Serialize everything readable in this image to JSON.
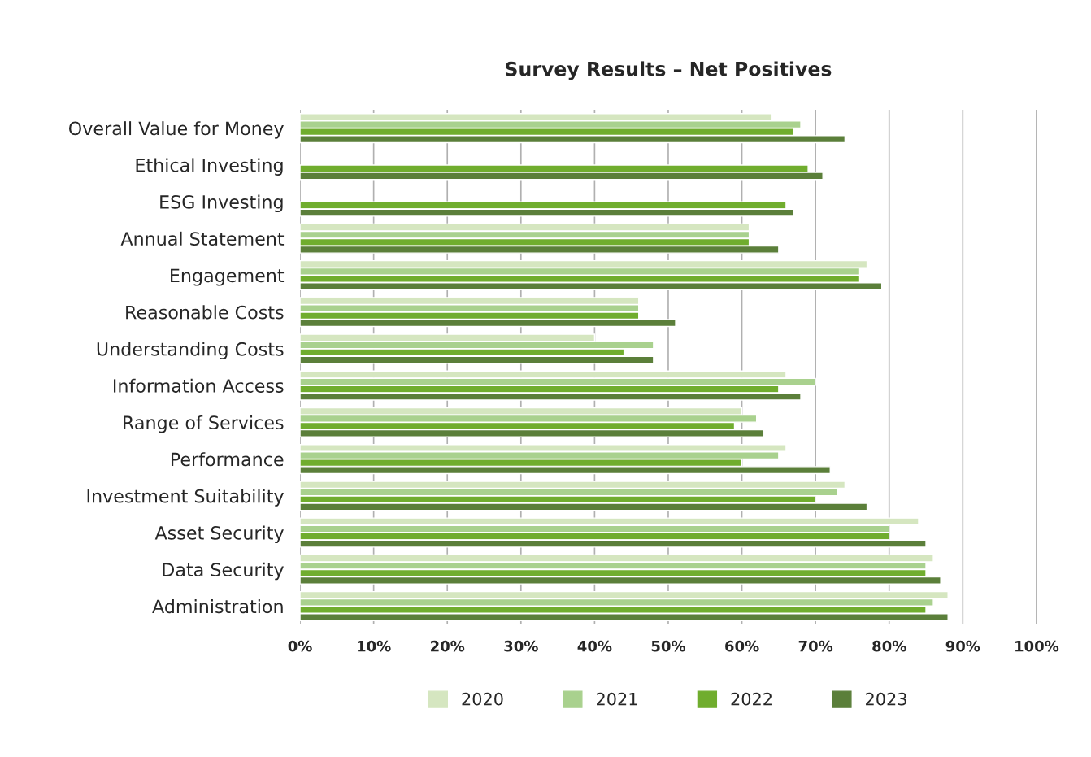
{
  "chart_data": {
    "type": "bar",
    "orientation": "horizontal",
    "title": "Survey Results – Net Positives",
    "categories": [
      "Overall Value for Money",
      "Ethical Investing",
      "ESG Investing",
      "Annual Statement",
      "Engagement",
      "Reasonable Costs",
      "Understanding Costs",
      "Information Access",
      "Range of Services",
      "Performance",
      "Investment Suitability",
      "Asset Security",
      "Data Security",
      "Administration"
    ],
    "series": [
      {
        "name": "2020",
        "color": "#d5e6c0",
        "values": [
          64,
          null,
          null,
          61,
          77,
          46,
          40,
          66,
          60,
          66,
          74,
          84,
          86,
          88
        ]
      },
      {
        "name": "2021",
        "color": "#a9d18e",
        "values": [
          68,
          null,
          null,
          61,
          76,
          46,
          48,
          70,
          62,
          65,
          73,
          80,
          85,
          86
        ]
      },
      {
        "name": "2022",
        "color": "#70ad2e",
        "values": [
          67,
          69,
          66,
          61,
          76,
          46,
          44,
          65,
          59,
          60,
          70,
          80,
          85,
          85
        ]
      },
      {
        "name": "2023",
        "color": "#5b7f3a",
        "values": [
          74,
          71,
          67,
          65,
          79,
          51,
          48,
          68,
          63,
          72,
          77,
          85,
          87,
          88
        ]
      }
    ],
    "xlim": [
      0,
      100
    ],
    "xticks": [
      {
        "value": 0,
        "label": "0%"
      },
      {
        "value": 10,
        "label": "10%"
      },
      {
        "value": 20,
        "label": "20%"
      },
      {
        "value": 30,
        "label": "30%"
      },
      {
        "value": 40,
        "label": "40%"
      },
      {
        "value": 50,
        "label": "50%"
      },
      {
        "value": 60,
        "label": "60%"
      },
      {
        "value": 70,
        "label": "70%"
      },
      {
        "value": 80,
        "label": "80%"
      },
      {
        "value": 90,
        "label": "90%"
      },
      {
        "value": 100,
        "label": "100%"
      }
    ],
    "grid": "x",
    "legend": "bottom"
  }
}
